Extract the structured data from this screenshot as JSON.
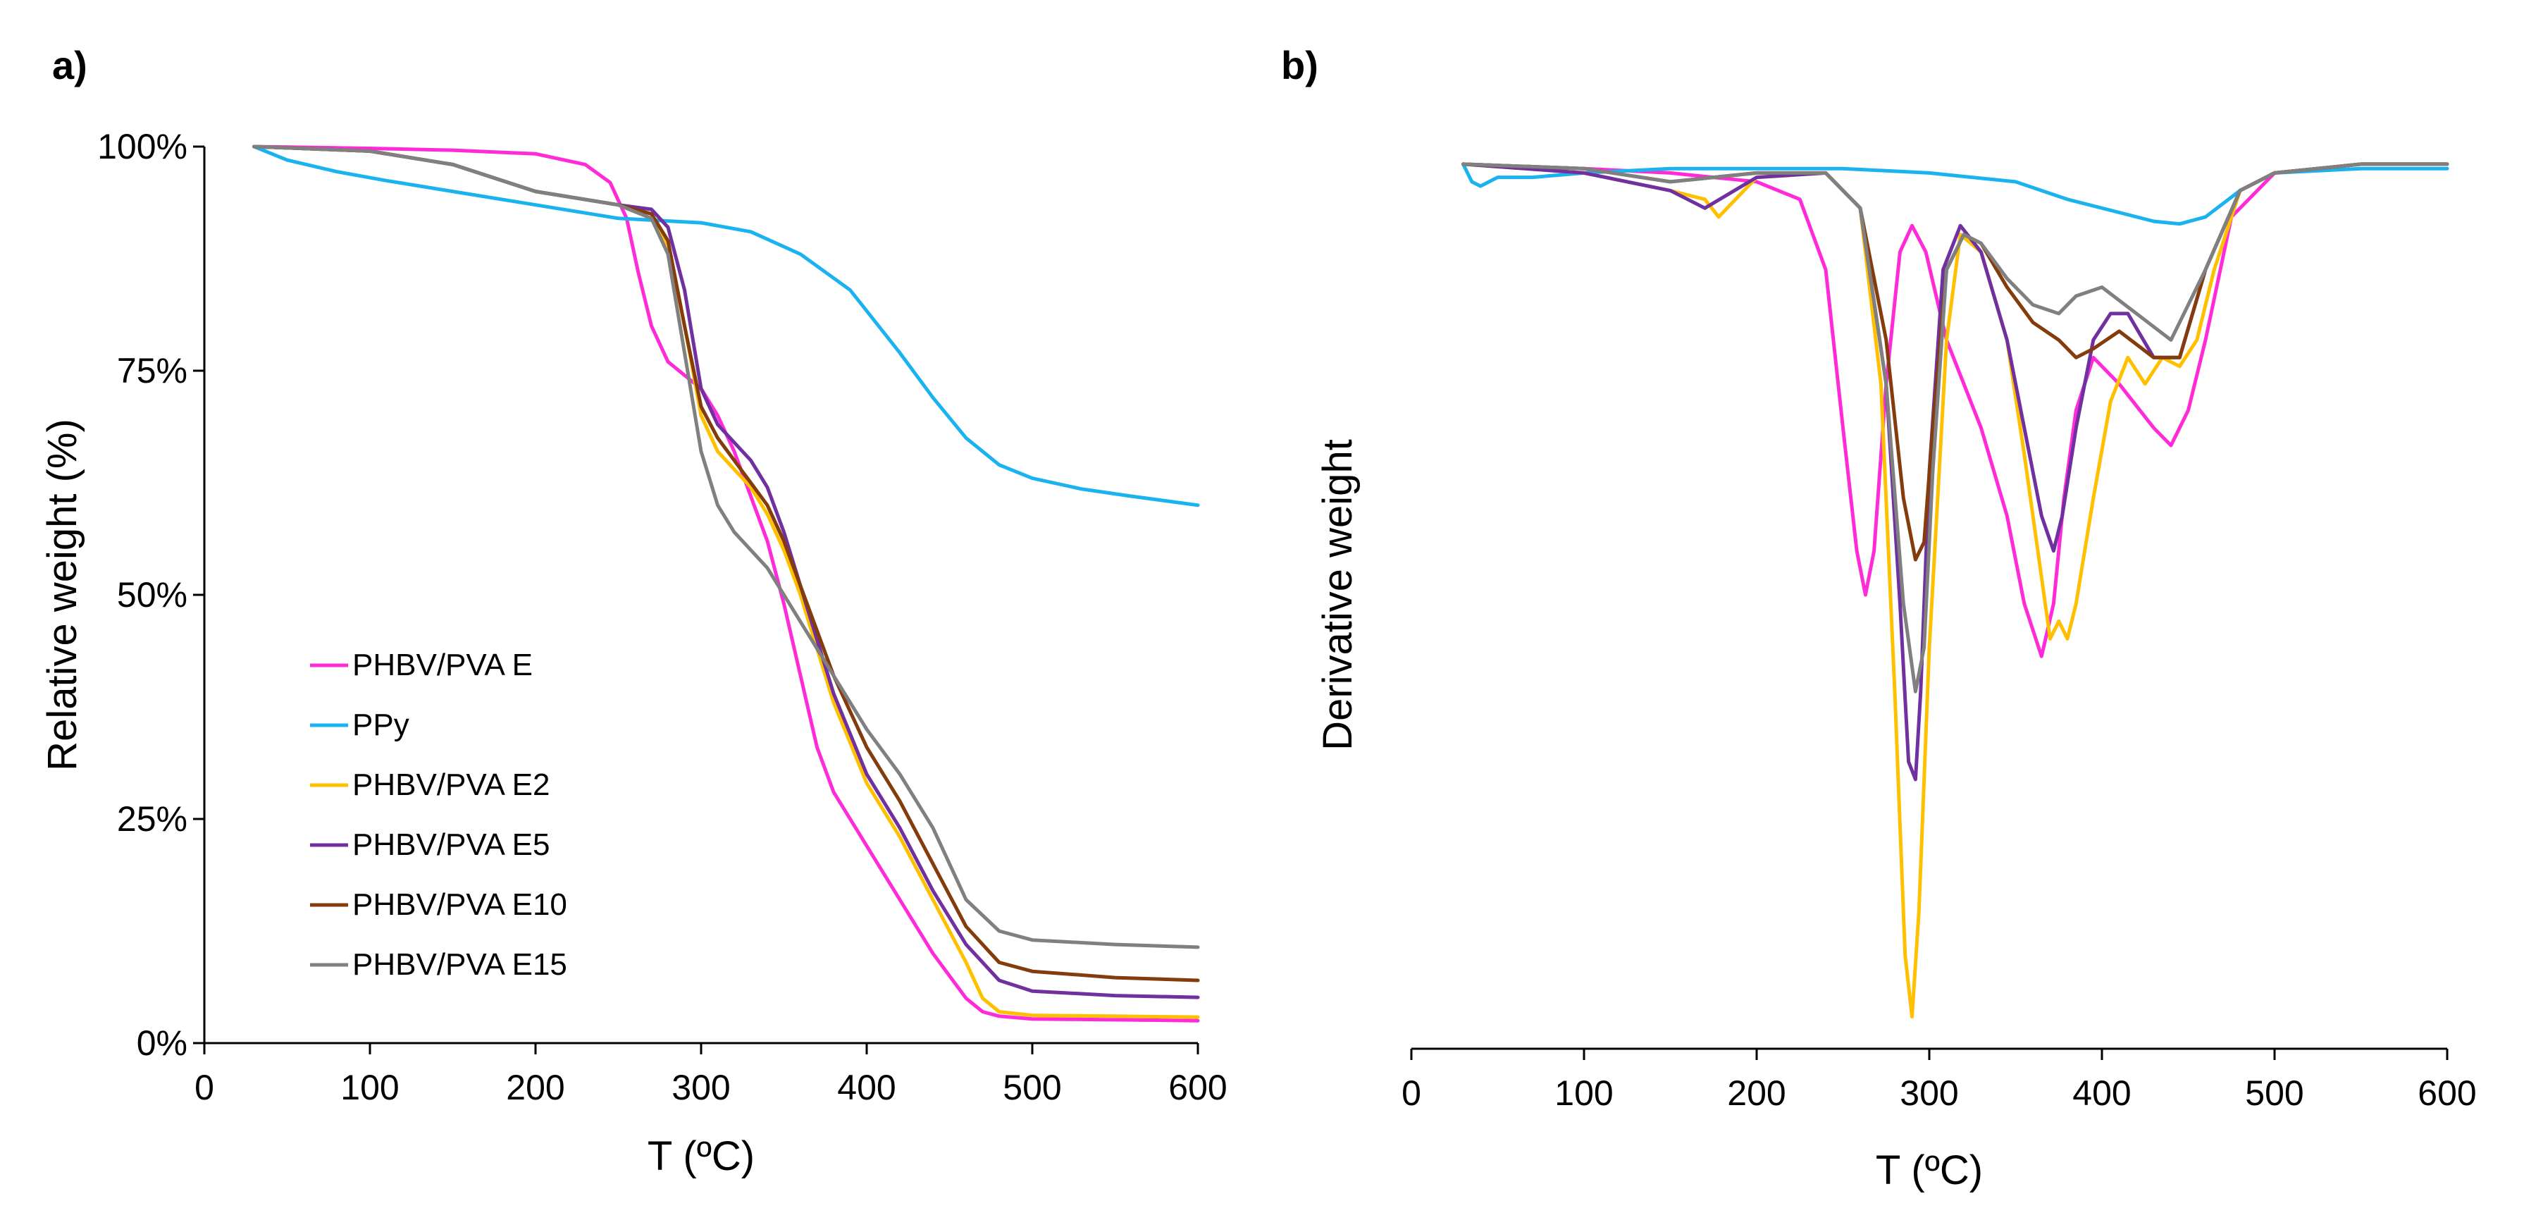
{
  "chart_data": [
    {
      "panel_label": "a)",
      "type": "line",
      "xlabel": "T (ºC)",
      "ylabel": "Relative weight (%)",
      "xlim": [
        0,
        600
      ],
      "ylim": [
        0,
        100
      ],
      "x_ticks": [
        "0",
        "100",
        "200",
        "300",
        "400",
        "500",
        "600"
      ],
      "y_ticks": [
        "0%",
        "25%",
        "50%",
        "75%",
        "100%"
      ],
      "grid": false,
      "legend_position": "lower-left",
      "series": [
        {
          "name": "PHBV/PVA E",
          "color": "#ff2bd9",
          "x": [
            30,
            100,
            150,
            200,
            230,
            245,
            255,
            262,
            270,
            280,
            290,
            300,
            310,
            320,
            330,
            340,
            350,
            360,
            370,
            380,
            390,
            400,
            420,
            440,
            460,
            470,
            480,
            500,
            550,
            600
          ],
          "y": [
            100,
            99.8,
            99.6,
            99.2,
            98,
            96,
            92,
            86,
            80,
            76,
            74.5,
            73,
            70,
            66,
            61,
            56,
            49,
            41,
            33,
            28,
            25,
            22,
            16,
            10,
            5,
            3.5,
            3,
            2.7,
            2.6,
            2.5
          ]
        },
        {
          "name": "PPy",
          "color": "#1ab3f0",
          "x": [
            30,
            50,
            80,
            110,
            150,
            200,
            250,
            300,
            330,
            360,
            390,
            420,
            440,
            460,
            480,
            500,
            530,
            560,
            600
          ],
          "y": [
            100,
            98.5,
            97.2,
            96.2,
            95,
            93.5,
            92,
            91.5,
            90.5,
            88,
            84,
            77,
            72,
            67.5,
            64.5,
            63,
            61.8,
            61,
            60
          ]
        },
        {
          "name": "PHBV/PVA E2",
          "color": "#ffc000",
          "x": [
            30,
            100,
            150,
            200,
            250,
            270,
            280,
            290,
            300,
            310,
            320,
            330,
            340,
            350,
            360,
            370,
            380,
            400,
            420,
            440,
            460,
            470,
            480,
            500,
            550,
            600
          ],
          "y": [
            100,
            99.5,
            98,
            95,
            93.5,
            92,
            89,
            80,
            70,
            66,
            64,
            62,
            59,
            55,
            50,
            44,
            38,
            29,
            23,
            16,
            9,
            5,
            3.5,
            3.1,
            3.0,
            2.9
          ]
        },
        {
          "name": "PHBV/PVA E5",
          "color": "#7030a0",
          "x": [
            30,
            100,
            150,
            200,
            250,
            270,
            280,
            290,
            300,
            310,
            320,
            330,
            340,
            350,
            360,
            370,
            380,
            400,
            420,
            440,
            460,
            480,
            500,
            550,
            600
          ],
          "y": [
            100,
            99.5,
            98,
            95,
            93.5,
            93,
            91,
            84,
            73,
            69,
            67,
            65,
            62,
            57,
            51,
            45,
            39,
            30,
            24,
            17,
            11,
            7,
            5.8,
            5.3,
            5.1
          ]
        },
        {
          "name": "PHBV/PVA E10",
          "color": "#843c0c",
          "x": [
            30,
            100,
            150,
            200,
            250,
            270,
            280,
            290,
            300,
            310,
            320,
            330,
            340,
            350,
            360,
            370,
            380,
            400,
            420,
            440,
            460,
            480,
            500,
            550,
            600
          ],
          "y": [
            100,
            99.5,
            98,
            95,
            93.5,
            92.5,
            89.5,
            80,
            71,
            67.5,
            65,
            62.5,
            60,
            56,
            51,
            46,
            41,
            33,
            27,
            20,
            13,
            9,
            8,
            7.3,
            7.0
          ]
        },
        {
          "name": "PHBV/PVA E15",
          "color": "#808080",
          "x": [
            30,
            100,
            150,
            200,
            250,
            270,
            280,
            290,
            300,
            310,
            320,
            330,
            340,
            350,
            360,
            370,
            380,
            400,
            420,
            440,
            460,
            480,
            500,
            550,
            600
          ],
          "y": [
            100,
            99.5,
            98,
            95,
            93.5,
            92,
            88,
            77,
            66,
            60,
            57,
            55,
            53,
            50,
            47,
            44,
            41,
            35,
            30,
            24,
            16,
            12.5,
            11.5,
            11,
            10.7
          ]
        }
      ]
    },
    {
      "panel_label": "b)",
      "type": "line",
      "xlabel": "T (ºC)",
      "ylabel": "Derivative weight",
      "xlim": [
        0,
        600
      ],
      "ylim": [
        -1.0,
        0.02
      ],
      "x_ticks": [
        "0",
        "100",
        "200",
        "300",
        "400",
        "500",
        "600"
      ],
      "grid": false,
      "series": [
        {
          "name": "PHBV/PVA E",
          "color": "#ff2bd9",
          "x": [
            30,
            100,
            150,
            200,
            225,
            240,
            250,
            258,
            263,
            268,
            275,
            283,
            290,
            298,
            310,
            330,
            345,
            355,
            365,
            372,
            378,
            385,
            395,
            410,
            430,
            440,
            450,
            460,
            475,
            500,
            550,
            600
          ],
          "y": [
            0,
            -0.005,
            -0.01,
            -0.02,
            -0.04,
            -0.12,
            -0.3,
            -0.44,
            -0.49,
            -0.44,
            -0.25,
            -0.1,
            -0.07,
            -0.1,
            -0.2,
            -0.3,
            -0.4,
            -0.5,
            -0.56,
            -0.5,
            -0.38,
            -0.28,
            -0.22,
            -0.25,
            -0.3,
            -0.32,
            -0.28,
            -0.2,
            -0.06,
            -0.01,
            0,
            0
          ]
        },
        {
          "name": "PPy",
          "color": "#1ab3f0",
          "x": [
            30,
            35,
            40,
            50,
            70,
            100,
            150,
            200,
            250,
            300,
            350,
            380,
            410,
            430,
            445,
            460,
            480,
            500,
            550,
            600
          ],
          "y": [
            0,
            -0.02,
            -0.025,
            -0.015,
            -0.015,
            -0.01,
            -0.005,
            -0.005,
            -0.005,
            -0.01,
            -0.02,
            -0.04,
            -0.055,
            -0.065,
            -0.068,
            -0.06,
            -0.03,
            -0.01,
            -0.005,
            -0.005
          ]
        },
        {
          "name": "PHBV/PVA E2",
          "color": "#ffc000",
          "x": [
            30,
            100,
            150,
            170,
            178,
            200,
            240,
            260,
            272,
            280,
            286,
            290,
            294,
            300,
            310,
            318,
            330,
            345,
            355,
            365,
            370,
            375,
            380,
            385,
            395,
            405,
            415,
            425,
            435,
            445,
            455,
            465,
            480,
            500,
            550,
            600
          ],
          "y": [
            0,
            -0.01,
            -0.03,
            -0.04,
            -0.06,
            -0.015,
            -0.01,
            -0.05,
            -0.25,
            -0.6,
            -0.9,
            -0.97,
            -0.85,
            -0.55,
            -0.2,
            -0.08,
            -0.1,
            -0.2,
            -0.33,
            -0.47,
            -0.54,
            -0.52,
            -0.54,
            -0.5,
            -0.38,
            -0.27,
            -0.22,
            -0.25,
            -0.22,
            -0.23,
            -0.2,
            -0.12,
            -0.03,
            -0.01,
            0,
            0
          ]
        },
        {
          "name": "PHBV/PVA E5",
          "color": "#7030a0",
          "x": [
            30,
            100,
            150,
            170,
            200,
            240,
            260,
            275,
            283,
            288,
            292,
            295,
            300,
            308,
            318,
            330,
            345,
            355,
            365,
            372,
            377,
            385,
            395,
            405,
            415,
            430,
            445,
            460,
            480,
            500,
            550,
            600
          ],
          "y": [
            0,
            -0.01,
            -0.03,
            -0.05,
            -0.015,
            -0.01,
            -0.05,
            -0.25,
            -0.5,
            -0.68,
            -0.7,
            -0.6,
            -0.35,
            -0.12,
            -0.07,
            -0.1,
            -0.2,
            -0.3,
            -0.4,
            -0.44,
            -0.4,
            -0.3,
            -0.2,
            -0.17,
            -0.17,
            -0.22,
            -0.22,
            -0.12,
            -0.03,
            -0.01,
            0,
            0
          ]
        },
        {
          "name": "PHBV/PVA E10",
          "color": "#843c0c",
          "x": [
            30,
            100,
            150,
            200,
            240,
            260,
            275,
            285,
            292,
            297,
            302,
            310,
            320,
            330,
            345,
            360,
            375,
            385,
            395,
            410,
            430,
            445,
            460,
            480,
            500,
            550,
            600
          ],
          "y": [
            0,
            -0.005,
            -0.02,
            -0.01,
            -0.01,
            -0.05,
            -0.2,
            -0.38,
            -0.45,
            -0.43,
            -0.3,
            -0.12,
            -0.08,
            -0.09,
            -0.14,
            -0.18,
            -0.2,
            -0.22,
            -0.21,
            -0.19,
            -0.22,
            -0.22,
            -0.12,
            -0.03,
            -0.01,
            0,
            0
          ]
        },
        {
          "name": "PHBV/PVA E15",
          "color": "#808080",
          "x": [
            30,
            100,
            150,
            200,
            240,
            260,
            275,
            285,
            292,
            297,
            302,
            310,
            320,
            330,
            345,
            360,
            375,
            385,
            400,
            420,
            440,
            460,
            480,
            500,
            550,
            600
          ],
          "y": [
            0,
            -0.005,
            -0.02,
            -0.01,
            -0.01,
            -0.05,
            -0.25,
            -0.5,
            -0.6,
            -0.55,
            -0.35,
            -0.12,
            -0.08,
            -0.09,
            -0.13,
            -0.16,
            -0.17,
            -0.15,
            -0.14,
            -0.17,
            -0.2,
            -0.12,
            -0.03,
            -0.01,
            0,
            0
          ]
        }
      ]
    }
  ]
}
